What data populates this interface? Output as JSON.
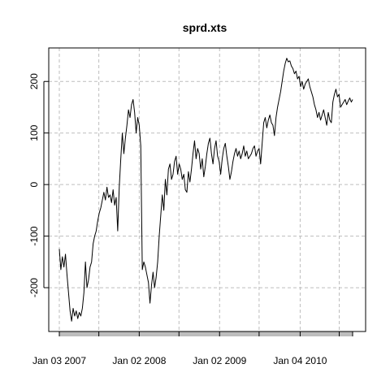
{
  "chart_data": {
    "type": "line",
    "title": "sprd.xts",
    "xlabel": "",
    "ylabel": "",
    "xlim": [
      "2007-01-03",
      "2010-08-31"
    ],
    "ylim": [
      -285,
      265
    ],
    "y_ticks": [
      -200,
      -100,
      0,
      100,
      200
    ],
    "x_tick_labels": [
      {
        "date": "2007-01-03",
        "label": "Jan 03 2007"
      },
      {
        "date": "2008-01-02",
        "label": "Jan 02 2008"
      },
      {
        "date": "2009-01-02",
        "label": "Jan 02 2009"
      },
      {
        "date": "2010-01-04",
        "label": "Jan 04 2010"
      }
    ],
    "x_grid_dates": [
      "2007-01-03",
      "2007-07-02",
      "2008-01-02",
      "2008-07-01",
      "2009-01-02",
      "2009-07-01",
      "2010-01-04",
      "2010-07-01"
    ],
    "grid": true,
    "series": [
      {
        "color": "#000000",
        "points": [
          [
            "2007-01-03",
            -125
          ],
          [
            "2007-01-10",
            -165
          ],
          [
            "2007-01-17",
            -140
          ],
          [
            "2007-01-24",
            -160
          ],
          [
            "2007-01-31",
            -135
          ],
          [
            "2007-02-07",
            -175
          ],
          [
            "2007-02-14",
            -210
          ],
          [
            "2007-02-21",
            -245
          ],
          [
            "2007-02-28",
            -265
          ],
          [
            "2007-03-07",
            -240
          ],
          [
            "2007-03-14",
            -255
          ],
          [
            "2007-03-21",
            -245
          ],
          [
            "2007-03-28",
            -260
          ],
          [
            "2007-04-04",
            -248
          ],
          [
            "2007-04-11",
            -255
          ],
          [
            "2007-04-18",
            -240
          ],
          [
            "2007-04-25",
            -210
          ],
          [
            "2007-05-02",
            -150
          ],
          [
            "2007-05-09",
            -200
          ],
          [
            "2007-05-16",
            -185
          ],
          [
            "2007-05-23",
            -160
          ],
          [
            "2007-05-30",
            -150
          ],
          [
            "2007-06-06",
            -115
          ],
          [
            "2007-06-13",
            -100
          ],
          [
            "2007-06-20",
            -90
          ],
          [
            "2007-06-27",
            -70
          ],
          [
            "2007-07-04",
            -55
          ],
          [
            "2007-07-11",
            -45
          ],
          [
            "2007-07-18",
            -30
          ],
          [
            "2007-07-25",
            -15
          ],
          [
            "2007-08-01",
            -30
          ],
          [
            "2007-08-08",
            -5
          ],
          [
            "2007-08-15",
            -25
          ],
          [
            "2007-08-22",
            -20
          ],
          [
            "2007-08-29",
            -35
          ],
          [
            "2007-09-05",
            -10
          ],
          [
            "2007-09-12",
            -40
          ],
          [
            "2007-09-19",
            -25
          ],
          [
            "2007-09-26",
            -90
          ],
          [
            "2007-10-03",
            -5
          ],
          [
            "2007-10-10",
            50
          ],
          [
            "2007-10-17",
            100
          ],
          [
            "2007-10-24",
            60
          ],
          [
            "2007-10-31",
            90
          ],
          [
            "2007-11-07",
            115
          ],
          [
            "2007-11-14",
            145
          ],
          [
            "2007-11-21",
            130
          ],
          [
            "2007-11-28",
            155
          ],
          [
            "2007-12-05",
            165
          ],
          [
            "2007-12-12",
            140
          ],
          [
            "2007-12-19",
            100
          ],
          [
            "2007-12-26",
            130
          ],
          [
            "2008-01-02",
            115
          ],
          [
            "2008-01-09",
            75
          ],
          [
            "2008-01-16",
            -165
          ],
          [
            "2008-01-23",
            -150
          ],
          [
            "2008-01-30",
            -160
          ],
          [
            "2008-02-06",
            -175
          ],
          [
            "2008-02-13",
            -190
          ],
          [
            "2008-02-20",
            -230
          ],
          [
            "2008-02-27",
            -195
          ],
          [
            "2008-03-05",
            -170
          ],
          [
            "2008-03-12",
            -200
          ],
          [
            "2008-03-19",
            -180
          ],
          [
            "2008-03-26",
            -150
          ],
          [
            "2008-04-02",
            -100
          ],
          [
            "2008-04-09",
            -60
          ],
          [
            "2008-04-16",
            -20
          ],
          [
            "2008-04-23",
            -50
          ],
          [
            "2008-04-30",
            10
          ],
          [
            "2008-05-07",
            -20
          ],
          [
            "2008-05-14",
            30
          ],
          [
            "2008-05-21",
            40
          ],
          [
            "2008-05-28",
            10
          ],
          [
            "2008-06-04",
            20
          ],
          [
            "2008-06-11",
            45
          ],
          [
            "2008-06-18",
            55
          ],
          [
            "2008-06-25",
            20
          ],
          [
            "2008-07-02",
            40
          ],
          [
            "2008-07-09",
            30
          ],
          [
            "2008-07-16",
            10
          ],
          [
            "2008-07-23",
            20
          ],
          [
            "2008-07-30",
            -10
          ],
          [
            "2008-08-06",
            -15
          ],
          [
            "2008-08-13",
            25
          ],
          [
            "2008-08-20",
            5
          ],
          [
            "2008-08-27",
            30
          ],
          [
            "2008-09-03",
            60
          ],
          [
            "2008-09-10",
            85
          ],
          [
            "2008-09-17",
            50
          ],
          [
            "2008-09-24",
            70
          ],
          [
            "2008-10-01",
            60
          ],
          [
            "2008-10-08",
            30
          ],
          [
            "2008-10-15",
            50
          ],
          [
            "2008-10-22",
            15
          ],
          [
            "2008-10-29",
            35
          ],
          [
            "2008-11-05",
            60
          ],
          [
            "2008-11-12",
            80
          ],
          [
            "2008-11-19",
            90
          ],
          [
            "2008-11-26",
            60
          ],
          [
            "2008-12-03",
            40
          ],
          [
            "2008-12-10",
            70
          ],
          [
            "2008-12-17",
            85
          ],
          [
            "2008-12-24",
            55
          ],
          [
            "2008-12-31",
            45
          ],
          [
            "2009-01-07",
            20
          ],
          [
            "2009-01-14",
            50
          ],
          [
            "2009-01-21",
            70
          ],
          [
            "2009-01-28",
            80
          ],
          [
            "2009-02-04",
            55
          ],
          [
            "2009-02-11",
            35
          ],
          [
            "2009-02-18",
            10
          ],
          [
            "2009-02-25",
            25
          ],
          [
            "2009-03-04",
            45
          ],
          [
            "2009-03-11",
            60
          ],
          [
            "2009-03-18",
            70
          ],
          [
            "2009-03-25",
            55
          ],
          [
            "2009-04-01",
            65
          ],
          [
            "2009-04-08",
            50
          ],
          [
            "2009-04-15",
            60
          ],
          [
            "2009-04-22",
            75
          ],
          [
            "2009-04-29",
            55
          ],
          [
            "2009-05-06",
            65
          ],
          [
            "2009-05-13",
            50
          ],
          [
            "2009-05-20",
            55
          ],
          [
            "2009-05-27",
            60
          ],
          [
            "2009-06-03",
            70
          ],
          [
            "2009-06-10",
            75
          ],
          [
            "2009-06-17",
            55
          ],
          [
            "2009-06-24",
            65
          ],
          [
            "2009-07-01",
            70
          ],
          [
            "2009-07-08",
            40
          ],
          [
            "2009-07-15",
            80
          ],
          [
            "2009-07-22",
            120
          ],
          [
            "2009-07-29",
            130
          ],
          [
            "2009-08-05",
            110
          ],
          [
            "2009-08-12",
            125
          ],
          [
            "2009-08-19",
            135
          ],
          [
            "2009-08-26",
            120
          ],
          [
            "2009-09-02",
            115
          ],
          [
            "2009-09-09",
            95
          ],
          [
            "2009-09-16",
            130
          ],
          [
            "2009-09-23",
            150
          ],
          [
            "2009-09-30",
            165
          ],
          [
            "2009-10-07",
            180
          ],
          [
            "2009-10-14",
            200
          ],
          [
            "2009-10-21",
            220
          ],
          [
            "2009-10-28",
            235
          ],
          [
            "2009-11-04",
            245
          ],
          [
            "2009-11-11",
            238
          ],
          [
            "2009-11-18",
            240
          ],
          [
            "2009-11-25",
            230
          ],
          [
            "2009-12-02",
            225
          ],
          [
            "2009-12-09",
            215
          ],
          [
            "2009-12-16",
            220
          ],
          [
            "2009-12-23",
            205
          ],
          [
            "2009-12-30",
            210
          ],
          [
            "2010-01-06",
            190
          ],
          [
            "2010-01-13",
            200
          ],
          [
            "2010-01-20",
            185
          ],
          [
            "2010-01-27",
            195
          ],
          [
            "2010-02-03",
            200
          ],
          [
            "2010-02-10",
            205
          ],
          [
            "2010-02-17",
            190
          ],
          [
            "2010-02-24",
            180
          ],
          [
            "2010-03-03",
            170
          ],
          [
            "2010-03-10",
            155
          ],
          [
            "2010-03-17",
            145
          ],
          [
            "2010-03-24",
            130
          ],
          [
            "2010-03-31",
            140
          ],
          [
            "2010-04-07",
            125
          ],
          [
            "2010-04-14",
            135
          ],
          [
            "2010-04-21",
            145
          ],
          [
            "2010-04-28",
            130
          ],
          [
            "2010-05-05",
            115
          ],
          [
            "2010-05-12",
            140
          ],
          [
            "2010-05-19",
            125
          ],
          [
            "2010-05-26",
            120
          ],
          [
            "2010-06-02",
            160
          ],
          [
            "2010-06-09",
            175
          ],
          [
            "2010-06-16",
            185
          ],
          [
            "2010-06-23",
            170
          ],
          [
            "2010-06-30",
            175
          ],
          [
            "2010-07-07",
            150
          ],
          [
            "2010-07-14",
            155
          ],
          [
            "2010-07-21",
            160
          ],
          [
            "2010-07-28",
            165
          ],
          [
            "2010-08-04",
            155
          ],
          [
            "2010-08-11",
            162
          ],
          [
            "2010-08-18",
            168
          ],
          [
            "2010-08-25",
            160
          ],
          [
            "2010-08-31",
            165
          ]
        ]
      }
    ]
  }
}
